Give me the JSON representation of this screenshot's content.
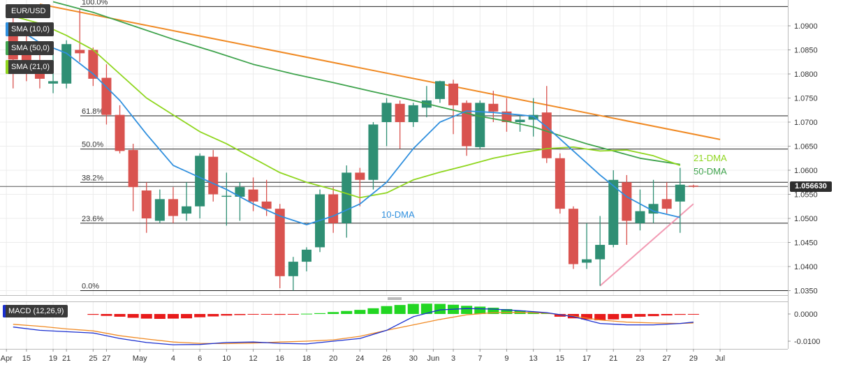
{
  "header": {
    "symbol": "EUR/USD",
    "indicators": [
      {
        "label": "SMA (10,0)",
        "color": "#2f8fde"
      },
      {
        "label": "SMA (50,0)",
        "color": "#3fa34d"
      },
      {
        "label": "SMA (21,0)",
        "color": "#8fd61e"
      }
    ]
  },
  "current_price": {
    "label": "1.056630",
    "value": 1.05663
  },
  "colors": {
    "bull": "#2f8f74",
    "bear": "#d9534f",
    "sma10": "#2f8fde",
    "sma50": "#3fa34d",
    "sma21": "#8fd61e",
    "resistance": "#f08a24",
    "support": "#f29ab3",
    "macd_line": "#1a2fd0",
    "signal_line": "#f08a24",
    "hist_pos": "#22d622",
    "hist_neg": "#e81b1b"
  },
  "annotations": {
    "sma10": "10-DMA",
    "sma21": "21-DMA",
    "sma50": "50-DMA"
  },
  "macd_panel": {
    "label": "MACD (12,26,9)"
  },
  "chart_data": [
    {
      "type": "candlestick",
      "title": "EUR/USD",
      "ylim": [
        1.0335,
        1.0945
      ],
      "yticks": [
        1.09,
        1.085,
        1.08,
        1.075,
        1.07,
        1.065,
        1.06,
        1.055,
        1.05,
        1.045,
        1.04,
        1.035
      ],
      "ytick_labels": [
        "1.0900",
        "1.0850",
        "1.0800",
        "1.0750",
        "1.0700",
        "1.0650",
        "1.0600",
        "1.0550",
        "1.0500",
        "1.0450",
        "1.0400",
        "1.0350"
      ],
      "x_tick_labels": [
        "Apr",
        "15",
        "19",
        "21",
        "25",
        "27",
        "May",
        "4",
        "6",
        "10",
        "12",
        "16",
        "18",
        "20",
        "24",
        "26",
        "30",
        "Jun",
        "3",
        "7",
        "9",
        "13",
        "15",
        "17",
        "21",
        "23",
        "27",
        "29",
        "Jul"
      ],
      "x_tick_index": [
        -0.5,
        1,
        3,
        4,
        6,
        7,
        9.5,
        12,
        14,
        16,
        18,
        20,
        22,
        24,
        26,
        28,
        30,
        31.5,
        33,
        35,
        37,
        39,
        41,
        43,
        45,
        47,
        49,
        51,
        53
      ],
      "candles": [
        {
          "o": 1.0895,
          "h": 1.0925,
          "l": 1.077,
          "c": 1.083
        },
        {
          "o": 1.0858,
          "h": 1.09,
          "l": 1.0785,
          "c": 1.081
        },
        {
          "o": 1.081,
          "h": 1.086,
          "l": 1.077,
          "c": 1.079
        },
        {
          "o": 1.078,
          "h": 1.084,
          "l": 1.076,
          "c": 1.0785
        },
        {
          "o": 1.078,
          "h": 1.087,
          "l": 1.077,
          "c": 1.0862
        },
        {
          "o": 1.085,
          "h": 1.0935,
          "l": 1.0825,
          "c": 1.0843
        },
        {
          "o": 1.085,
          "h": 1.0855,
          "l": 1.0775,
          "c": 1.079
        },
        {
          "o": 1.0792,
          "h": 1.082,
          "l": 1.0695,
          "c": 1.0715
        },
        {
          "o": 1.0715,
          "h": 1.0735,
          "l": 1.0635,
          "c": 1.064
        },
        {
          "o": 1.0642,
          "h": 1.0655,
          "l": 1.0515,
          "c": 1.0565
        },
        {
          "o": 1.0558,
          "h": 1.0575,
          "l": 1.047,
          "c": 1.05
        },
        {
          "o": 1.0495,
          "h": 1.056,
          "l": 1.049,
          "c": 1.054
        },
        {
          "o": 1.054,
          "h": 1.0565,
          "l": 1.049,
          "c": 1.0505
        },
        {
          "o": 1.051,
          "h": 1.0575,
          "l": 1.0495,
          "c": 1.0525
        },
        {
          "o": 1.0525,
          "h": 1.0635,
          "l": 1.05,
          "c": 1.063
        },
        {
          "o": 1.0628,
          "h": 1.0642,
          "l": 1.0535,
          "c": 1.055
        },
        {
          "o": 1.0545,
          "h": 1.0595,
          "l": 1.0485,
          "c": 1.0547
        },
        {
          "o": 1.0545,
          "h": 1.0575,
          "l": 1.0495,
          "c": 1.0565
        },
        {
          "o": 1.056,
          "h": 1.0585,
          "l": 1.0515,
          "c": 1.0535
        },
        {
          "o": 1.0535,
          "h": 1.058,
          "l": 1.0505,
          "c": 1.052
        },
        {
          "o": 1.052,
          "h": 1.053,
          "l": 1.0355,
          "c": 1.038
        },
        {
          "o": 1.038,
          "h": 1.042,
          "l": 1.035,
          "c": 1.041
        },
        {
          "o": 1.041,
          "h": 1.044,
          "l": 1.039,
          "c": 1.0435
        },
        {
          "o": 1.044,
          "h": 1.056,
          "l": 1.043,
          "c": 1.055
        },
        {
          "o": 1.055,
          "h": 1.0565,
          "l": 1.047,
          "c": 1.049
        },
        {
          "o": 1.049,
          "h": 1.061,
          "l": 1.046,
          "c": 1.0595
        },
        {
          "o": 1.0595,
          "h": 1.0605,
          "l": 1.0525,
          "c": 1.058
        },
        {
          "o": 1.058,
          "h": 1.07,
          "l": 1.056,
          "c": 1.0695
        },
        {
          "o": 1.07,
          "h": 1.075,
          "l": 1.065,
          "c": 1.074
        },
        {
          "o": 1.0738,
          "h": 1.0745,
          "l": 1.0645,
          "c": 1.07
        },
        {
          "o": 1.07,
          "h": 1.074,
          "l": 1.069,
          "c": 1.0735
        },
        {
          "o": 1.073,
          "h": 1.0775,
          "l": 1.071,
          "c": 1.0745
        },
        {
          "o": 1.0748,
          "h": 1.0786,
          "l": 1.074,
          "c": 1.0785
        },
        {
          "o": 1.078,
          "h": 1.0788,
          "l": 1.0675,
          "c": 1.0735
        },
        {
          "o": 1.074,
          "h": 1.0745,
          "l": 1.063,
          "c": 1.065
        },
        {
          "o": 1.0648,
          "h": 1.0745,
          "l": 1.0643,
          "c": 1.074
        },
        {
          "o": 1.0738,
          "h": 1.0765,
          "l": 1.07,
          "c": 1.0722
        },
        {
          "o": 1.0722,
          "h": 1.075,
          "l": 1.068,
          "c": 1.07
        },
        {
          "o": 1.07,
          "h": 1.0715,
          "l": 1.068,
          "c": 1.0705
        },
        {
          "o": 1.0705,
          "h": 1.075,
          "l": 1.067,
          "c": 1.0715
        },
        {
          "o": 1.072,
          "h": 1.0775,
          "l": 1.0615,
          "c": 1.0625
        },
        {
          "o": 1.0625,
          "h": 1.0635,
          "l": 1.051,
          "c": 1.052
        },
        {
          "o": 1.052,
          "h": 1.0525,
          "l": 1.0395,
          "c": 1.0405
        },
        {
          "o": 1.0408,
          "h": 1.049,
          "l": 1.0395,
          "c": 1.0415
        },
        {
          "o": 1.0415,
          "h": 1.0505,
          "l": 1.036,
          "c": 1.0445
        },
        {
          "o": 1.0445,
          "h": 1.06,
          "l": 1.044,
          "c": 1.058
        },
        {
          "o": 1.0575,
          "h": 1.059,
          "l": 1.0445,
          "c": 1.0495
        },
        {
          "o": 1.049,
          "h": 1.056,
          "l": 1.0475,
          "c": 1.0515
        },
        {
          "o": 1.051,
          "h": 1.058,
          "l": 1.049,
          "c": 1.053
        },
        {
          "o": 1.054,
          "h": 1.0575,
          "l": 1.051,
          "c": 1.052
        },
        {
          "o": 1.0535,
          "h": 1.0605,
          "l": 1.047,
          "c": 1.057
        },
        {
          "o": 1.0568,
          "h": 1.057,
          "l": 1.0564,
          "c": 1.0566
        }
      ],
      "sma10": [
        [
          0,
          1.09
        ],
        [
          2,
          1.0865
        ],
        [
          4,
          1.0843
        ],
        [
          6,
          1.08
        ],
        [
          8,
          1.0745
        ],
        [
          10,
          1.0675
        ],
        [
          12,
          1.061
        ],
        [
          14,
          1.0585
        ],
        [
          16,
          1.056
        ],
        [
          18,
          1.053
        ],
        [
          20,
          1.0505
        ],
        [
          22,
          1.0487
        ],
        [
          24,
          1.0505
        ],
        [
          26,
          1.053
        ],
        [
          28,
          1.0575
        ],
        [
          30,
          1.0645
        ],
        [
          32,
          1.07
        ],
        [
          34,
          1.0723
        ],
        [
          36,
          1.072
        ],
        [
          38,
          1.0715
        ],
        [
          39,
          1.0712
        ],
        [
          40,
          1.069
        ],
        [
          42,
          1.064
        ],
        [
          44,
          1.059
        ],
        [
          46,
          1.0545
        ],
        [
          48,
          1.0515
        ],
        [
          50,
          1.0502
        ]
      ],
      "sma21": [
        [
          0,
          1.092
        ],
        [
          2,
          1.0905
        ],
        [
          4,
          1.088
        ],
        [
          6,
          1.085
        ],
        [
          8,
          1.08
        ],
        [
          10,
          1.075
        ],
        [
          12,
          1.0715
        ],
        [
          14,
          1.068
        ],
        [
          16,
          1.0655
        ],
        [
          18,
          1.0625
        ],
        [
          20,
          1.0595
        ],
        [
          22,
          1.0575
        ],
        [
          24,
          1.056
        ],
        [
          26,
          1.0543
        ],
        [
          28,
          1.0553
        ],
        [
          30,
          1.058
        ],
        [
          32,
          1.0596
        ],
        [
          34,
          1.061
        ],
        [
          36,
          1.0625
        ],
        [
          38,
          1.0636
        ],
        [
          40,
          1.0645
        ],
        [
          42,
          1.0648
        ],
        [
          44,
          1.064
        ],
        [
          46,
          1.0642
        ],
        [
          48,
          1.063
        ],
        [
          50,
          1.061
        ]
      ],
      "sma50": [
        [
          3,
          1.095
        ],
        [
          6,
          1.0928
        ],
        [
          9,
          1.09
        ],
        [
          12,
          1.0872
        ],
        [
          15,
          1.0847
        ],
        [
          18,
          1.082
        ],
        [
          21,
          1.08
        ],
        [
          24,
          1.0782
        ],
        [
          27,
          1.0763
        ],
        [
          30,
          1.0745
        ],
        [
          33,
          1.0725
        ],
        [
          35,
          1.0712
        ],
        [
          37,
          1.0702
        ],
        [
          39,
          1.069
        ],
        [
          41,
          1.0672
        ],
        [
          43,
          1.0655
        ],
        [
          45,
          1.064
        ],
        [
          47,
          1.0625
        ],
        [
          50,
          1.0612
        ]
      ],
      "resistance": [
        [
          2,
          1.0945
        ],
        [
          53,
          1.0664
        ]
      ],
      "support": [
        [
          44,
          1.036
        ],
        [
          51,
          1.053
        ]
      ],
      "fibonacci": [
        {
          "label": "100.0%",
          "level": 1.094
        },
        {
          "label": "61.8%",
          "level": 1.0713
        },
        {
          "label": "50.0%",
          "level": 1.0644
        },
        {
          "label": "38.2%",
          "level": 1.0575
        },
        {
          "label": "23.6%",
          "level": 1.049
        },
        {
          "label": "0.0%",
          "level": 1.035
        }
      ]
    },
    {
      "type": "bar",
      "title": "MACD (12,26,9)",
      "ylim": [
        -0.0125,
        0.0045
      ],
      "yticks": [
        0.0,
        -0.01
      ],
      "ytick_labels": [
        "0.0000",
        "-0.0100"
      ],
      "histogram": [
        0,
        0,
        0,
        0,
        0,
        0,
        -0.0003,
        -0.0007,
        -0.001,
        -0.0014,
        -0.0017,
        -0.0018,
        -0.0017,
        -0.0016,
        -0.0012,
        -0.0009,
        -0.0006,
        -0.0004,
        -0.0002,
        -0.0001,
        -0.0003,
        -0.0002,
        0.0001,
        0.0003,
        0.0007,
        0.0011,
        0.0015,
        0.0021,
        0.0029,
        0.0033,
        0.0037,
        0.0038,
        0.0037,
        0.0034,
        0.003,
        0.0027,
        0.0023,
        0.0018,
        0.0013,
        0.0008,
        0.0003,
        -0.001,
        -0.0016,
        -0.002,
        -0.0023,
        -0.002,
        -0.0015,
        -0.001,
        -0.0008,
        -0.0005,
        -0.0003,
        -0.0002
      ],
      "macd": [
        [
          0,
          -0.0048
        ],
        [
          2,
          -0.006
        ],
        [
          4,
          -0.0065
        ],
        [
          6,
          -0.007
        ],
        [
          8,
          -0.009
        ],
        [
          10,
          -0.0105
        ],
        [
          12,
          -0.0113
        ],
        [
          14,
          -0.0112
        ],
        [
          16,
          -0.0105
        ],
        [
          18,
          -0.0103
        ],
        [
          20,
          -0.0108
        ],
        [
          22,
          -0.011
        ],
        [
          24,
          -0.01
        ],
        [
          26,
          -0.009
        ],
        [
          28,
          -0.006
        ],
        [
          30,
          -0.001
        ],
        [
          32,
          0.0015
        ],
        [
          34,
          0.002
        ],
        [
          36,
          0.0018
        ],
        [
          38,
          0.0012
        ],
        [
          40,
          0.0005
        ],
        [
          42,
          -0.001
        ],
        [
          44,
          -0.0035
        ],
        [
          46,
          -0.004
        ],
        [
          48,
          -0.004
        ],
        [
          50,
          -0.0035
        ],
        [
          51,
          -0.003
        ]
      ],
      "signal": [
        [
          0,
          -0.0038
        ],
        [
          2,
          -0.0045
        ],
        [
          4,
          -0.0055
        ],
        [
          6,
          -0.0062
        ],
        [
          8,
          -0.008
        ],
        [
          10,
          -0.0092
        ],
        [
          12,
          -0.0103
        ],
        [
          14,
          -0.0108
        ],
        [
          16,
          -0.0109
        ],
        [
          18,
          -0.0107
        ],
        [
          20,
          -0.0103
        ],
        [
          22,
          -0.01
        ],
        [
          24,
          -0.0095
        ],
        [
          26,
          -0.0082
        ],
        [
          28,
          -0.006
        ],
        [
          30,
          -0.004
        ],
        [
          32,
          -0.002
        ],
        [
          34,
          -0.0003
        ],
        [
          36,
          0.0005
        ],
        [
          38,
          0.0006
        ],
        [
          40,
          0.0003
        ],
        [
          42,
          -0.0008
        ],
        [
          44,
          -0.0022
        ],
        [
          46,
          -0.003
        ],
        [
          48,
          -0.0033
        ],
        [
          50,
          -0.0035
        ],
        [
          51,
          -0.0033
        ]
      ]
    }
  ]
}
